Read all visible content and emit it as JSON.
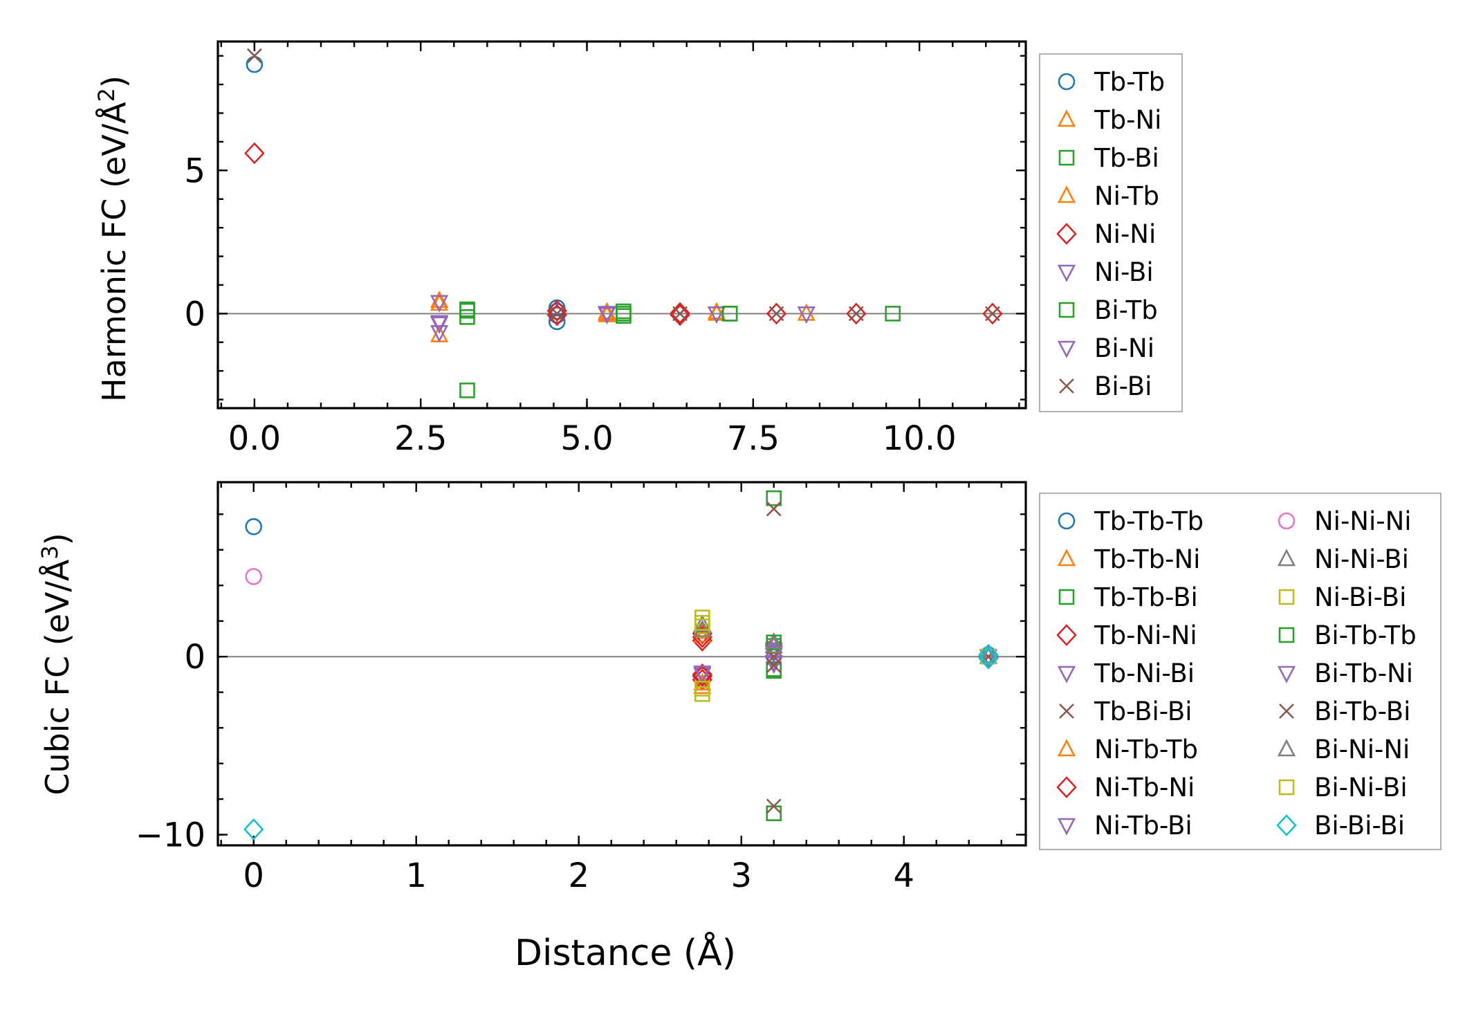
{
  "colors": {
    "tab_blue": "#1f77b4",
    "tab_orange": "#ff7f0e",
    "tab_green": "#2ca02c",
    "tab_red": "#d62728",
    "tab_purple": "#9467bd",
    "tab_brown": "#8c564b",
    "tab_pink": "#e377c2",
    "tab_gray": "#7f7f7f",
    "tab_olive": "#bcbd22",
    "tab_cyan": "#17becf"
  },
  "chart_data": [
    {
      "type": "scatter",
      "title": "",
      "xlabel": "",
      "ylabel": "Harmonic FC (eV/Å²)",
      "ylabel_main": "Harmonic FC (eV/Å",
      "ylabel_sup": "2",
      "ylabel_tail": ")",
      "xlim": [
        -0.55,
        11.6
      ],
      "ylim": [
        -3.3,
        9.5
      ],
      "xticks": [
        0.0,
        2.5,
        5.0,
        7.5,
        10.0
      ],
      "xtick_labels": [
        "0.0",
        "2.5",
        "5.0",
        "7.5",
        "10.0"
      ],
      "yticks": [
        0,
        5
      ],
      "ytick_labels": [
        "0",
        "5"
      ],
      "zero_line": true,
      "legend_position": "outside-right",
      "series": [
        {
          "name": "Tb-Tb",
          "marker": "circle",
          "color": "#1f77b4",
          "x": [
            0.0,
            4.55,
            4.55,
            4.55,
            4.55
          ],
          "y": [
            8.7,
            0.2,
            0.08,
            -0.05,
            -0.28
          ]
        },
        {
          "name": "Tb-Ni",
          "marker": "triangle-up",
          "color": "#ff7f0e",
          "x": [
            2.78,
            2.78,
            5.3,
            5.3,
            6.95,
            8.3
          ],
          "y": [
            -0.75,
            0.35,
            0.05,
            -0.05,
            0.0,
            0.0
          ]
        },
        {
          "name": "Tb-Bi",
          "marker": "square",
          "color": "#2ca02c",
          "x": [
            3.2,
            3.2,
            3.2,
            5.55,
            5.55,
            7.15,
            9.6
          ],
          "y": [
            0.15,
            -0.12,
            -2.68,
            0.08,
            -0.08,
            0.0,
            0.0
          ]
        },
        {
          "name": "Ni-Tb",
          "marker": "triangle-up",
          "color": "#ff7f0e",
          "x": [
            2.78,
            5.3,
            6.95
          ],
          "y": [
            0.45,
            0.0,
            0.05
          ]
        },
        {
          "name": "Ni-Ni",
          "marker": "diamond",
          "color": "#d62728",
          "x": [
            0.0,
            4.55,
            4.55,
            6.4,
            6.4,
            7.85,
            9.05,
            11.1
          ],
          "y": [
            5.6,
            0.1,
            -0.05,
            0.02,
            -0.05,
            0.0,
            0.0,
            0.0
          ]
        },
        {
          "name": "Ni-Bi",
          "marker": "triangle-down",
          "color": "#9467bd",
          "x": [
            2.78,
            2.78,
            5.3,
            6.95,
            8.3
          ],
          "y": [
            -0.35,
            -0.65,
            0.02,
            0.0,
            0.0
          ]
        },
        {
          "name": "Bi-Tb",
          "marker": "square",
          "color": "#2ca02c",
          "x": [
            3.2,
            5.55,
            7.15
          ],
          "y": [
            0.1,
            0.0,
            0.0
          ]
        },
        {
          "name": "Bi-Ni",
          "marker": "triangle-down",
          "color": "#9467bd",
          "x": [
            2.78,
            2.78,
            5.3
          ],
          "y": [
            0.4,
            -0.3,
            -0.02
          ]
        },
        {
          "name": "Bi-Bi",
          "marker": "x",
          "color": "#8c564b",
          "x": [
            0.0,
            4.55,
            6.4,
            7.85,
            9.05,
            11.1
          ],
          "y": [
            9.0,
            0.0,
            0.0,
            0.0,
            0.0,
            0.0
          ]
        }
      ]
    },
    {
      "type": "scatter",
      "title": "",
      "xlabel": "Distance (Å)",
      "ylabel": "Cubic FC (eV/Å³)",
      "ylabel_main": "Cubic FC (eV/Å",
      "ylabel_sup": "3",
      "ylabel_tail": ")",
      "xlim": [
        -0.22,
        4.75
      ],
      "ylim": [
        -10.6,
        9.8
      ],
      "xticks": [
        0,
        1,
        2,
        3,
        4
      ],
      "xtick_labels": [
        "0",
        "1",
        "2",
        "3",
        "4"
      ],
      "yticks": [
        -10,
        0
      ],
      "ytick_labels": [
        "−10",
        "0"
      ],
      "zero_line": true,
      "legend_position": "outside-right",
      "series": [
        {
          "name": "Tb-Tb-Tb",
          "marker": "circle",
          "color": "#1f77b4",
          "x": [
            0.0,
            4.52
          ],
          "y": [
            7.3,
            0.1
          ]
        },
        {
          "name": "Tb-Tb-Ni",
          "marker": "triangle-up",
          "color": "#ff7f0e",
          "x": [
            2.76,
            2.76,
            4.52
          ],
          "y": [
            1.4,
            -1.7,
            0.0
          ]
        },
        {
          "name": "Tb-Tb-Bi",
          "marker": "square",
          "color": "#2ca02c",
          "x": [
            3.2,
            3.2,
            3.2,
            3.2,
            4.52
          ],
          "y": [
            8.9,
            0.6,
            -0.7,
            -8.8,
            0.0
          ]
        },
        {
          "name": "Tb-Ni-Ni",
          "marker": "diamond",
          "color": "#d62728",
          "x": [
            2.76,
            2.76,
            2.76,
            2.76,
            4.52
          ],
          "y": [
            1.3,
            0.9,
            -1.0,
            -1.3,
            0.0
          ]
        },
        {
          "name": "Tb-Ni-Bi",
          "marker": "triangle-down",
          "color": "#9467bd",
          "x": [
            2.76,
            3.2,
            3.2,
            4.52
          ],
          "y": [
            -1.0,
            0.4,
            -0.3,
            0.0
          ]
        },
        {
          "name": "Tb-Bi-Bi",
          "marker": "x",
          "color": "#8c564b",
          "x": [
            3.2,
            3.2,
            3.2,
            4.52
          ],
          "y": [
            8.3,
            0.5,
            -8.4,
            0.0
          ]
        },
        {
          "name": "Ni-Tb-Tb",
          "marker": "triangle-up",
          "color": "#ff7f0e",
          "x": [
            2.76,
            2.76,
            4.52
          ],
          "y": [
            1.2,
            -1.5,
            0.0
          ]
        },
        {
          "name": "Ni-Tb-Ni",
          "marker": "diamond",
          "color": "#d62728",
          "x": [
            2.76,
            2.76,
            4.52
          ],
          "y": [
            1.1,
            -1.1,
            0.0
          ]
        },
        {
          "name": "Ni-Tb-Bi",
          "marker": "triangle-down",
          "color": "#9467bd",
          "x": [
            2.76,
            3.2,
            4.52
          ],
          "y": [
            -0.9,
            0.3,
            0.0
          ]
        },
        {
          "name": "Ni-Ni-Ni",
          "marker": "circle",
          "color": "#e377c2",
          "x": [
            0.0,
            4.52
          ],
          "y": [
            4.5,
            0.05
          ]
        },
        {
          "name": "Ni-Ni-Bi",
          "marker": "triangle-up",
          "color": "#7f7f7f",
          "x": [
            2.76,
            3.2,
            4.52
          ],
          "y": [
            1.8,
            0.8,
            0.0
          ]
        },
        {
          "name": "Ni-Bi-Bi",
          "marker": "square",
          "color": "#bcbd22",
          "x": [
            2.76,
            2.76,
            2.76,
            4.52
          ],
          "y": [
            2.2,
            1.7,
            -2.1,
            0.0
          ]
        },
        {
          "name": "Bi-Tb-Tb",
          "marker": "square",
          "color": "#2ca02c",
          "x": [
            3.2,
            3.2,
            4.52
          ],
          "y": [
            0.8,
            -0.8,
            0.0
          ]
        },
        {
          "name": "Bi-Tb-Ni",
          "marker": "triangle-down",
          "color": "#9467bd",
          "x": [
            3.2,
            3.2,
            4.52
          ],
          "y": [
            0.2,
            -0.4,
            0.0
          ]
        },
        {
          "name": "Bi-Tb-Bi",
          "marker": "x",
          "color": "#8c564b",
          "x": [
            3.2,
            3.2,
            4.52
          ],
          "y": [
            0.0,
            -0.5,
            0.0
          ]
        },
        {
          "name": "Bi-Ni-Ni",
          "marker": "triangle-up",
          "color": "#7f7f7f",
          "x": [
            2.76,
            3.2,
            4.52
          ],
          "y": [
            1.5,
            0.6,
            0.0
          ]
        },
        {
          "name": "Bi-Ni-Bi",
          "marker": "square",
          "color": "#bcbd22",
          "x": [
            2.76,
            2.76,
            4.52
          ],
          "y": [
            1.9,
            -1.8,
            0.0
          ]
        },
        {
          "name": "Bi-Bi-Bi",
          "marker": "diamond",
          "color": "#17becf",
          "x": [
            0.0,
            4.52,
            4.52
          ],
          "y": [
            -9.7,
            0.1,
            -0.1
          ]
        }
      ]
    }
  ]
}
